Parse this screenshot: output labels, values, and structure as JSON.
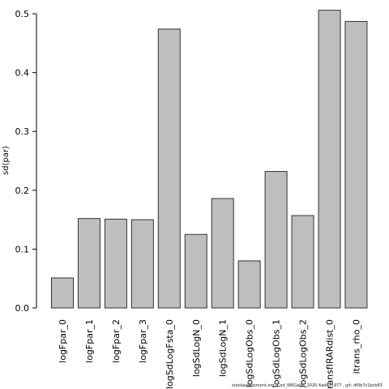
{
  "chart_data": {
    "type": "bar",
    "ylabel": "sd(par)",
    "xlabel": "",
    "title": "",
    "ylim": [
      0,
      0.5
    ],
    "yticks": [
      0.0,
      0.1,
      0.2,
      0.3,
      0.4,
      0.5
    ],
    "ytick_labels": [
      "0.0",
      "0.1",
      "0.2",
      "0.3",
      "0.4",
      "0.5"
    ],
    "categories": [
      "logFpar_0",
      "logFpar_1",
      "logFpar_2",
      "logFpar_3",
      "logSdLogFsta_0",
      "logSdLogN_0",
      "logSdLogN_1",
      "logSdLogObs_0",
      "logSdLogObs_1",
      "logSdLogObs_2",
      "transfIRARdist_0",
      "itrans_rho_0"
    ],
    "values": [
      0.051,
      0.152,
      0.151,
      0.15,
      0.474,
      0.125,
      0.186,
      0.08,
      0.232,
      0.157,
      0.506,
      0.487
    ],
    "bar_color": "#bebebe",
    "bar_edge_color": "#333333",
    "grid": false,
    "legend": "none"
  },
  "footer": {
    "text": "stockassessment.org, Cod_WKGallic_2020  4ad411977 , git:  df0b7c1bcb83"
  }
}
